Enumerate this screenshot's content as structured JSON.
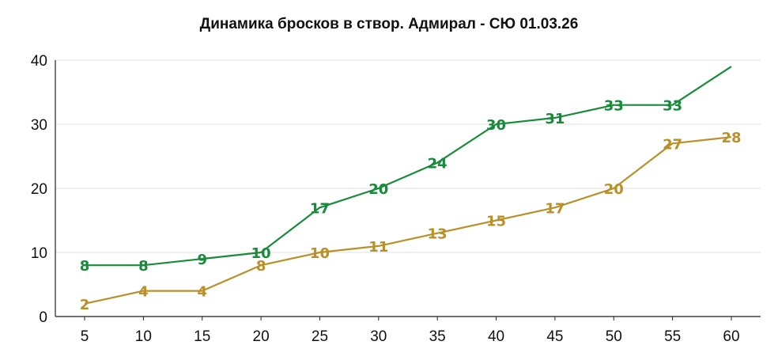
{
  "chart_data": {
    "type": "line",
    "title": "Динамика бросков в створ. Адмирал - СЮ 01.03.26",
    "xlabel": "",
    "ylabel": "",
    "x": [
      5,
      10,
      15,
      20,
      25,
      30,
      35,
      40,
      45,
      50,
      55,
      60
    ],
    "x_ticks": [
      "5",
      "10",
      "15",
      "20",
      "25",
      "30",
      "35",
      "40",
      "45",
      "50",
      "55",
      "60"
    ],
    "y_ticks": [
      "0",
      "10",
      "20",
      "30",
      "40"
    ],
    "xlim": [
      5,
      60
    ],
    "ylim": [
      0,
      40
    ],
    "grid": "horizontal",
    "legend": "none",
    "series": [
      {
        "color": "#1a8a3c",
        "values": [
          8,
          8,
          9,
          10,
          17,
          20,
          24,
          30,
          31,
          33,
          33,
          39
        ],
        "labels": [
          "8",
          "8",
          "9",
          "10",
          "17",
          "20",
          "24",
          "30",
          "31",
          "33",
          "33",
          ""
        ]
      },
      {
        "color": "#b8912a",
        "values": [
          2,
          4,
          4,
          8,
          10,
          11,
          13,
          15,
          17,
          20,
          27,
          28
        ],
        "labels": [
          "2",
          "4",
          "4",
          "8",
          "10",
          "11",
          "13",
          "15",
          "17",
          "20",
          "27",
          "28"
        ]
      }
    ]
  }
}
